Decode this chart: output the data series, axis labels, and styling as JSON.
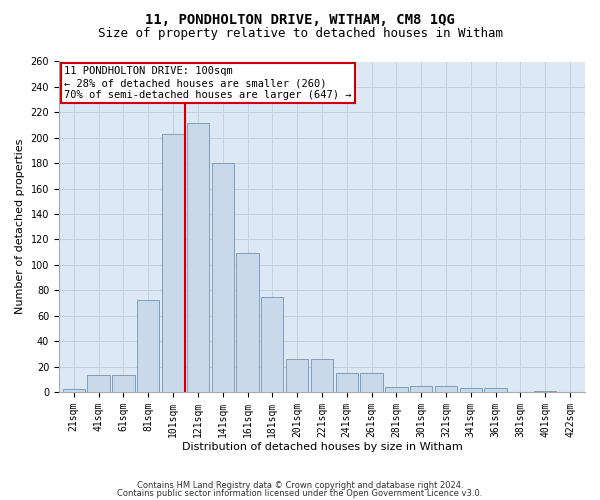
{
  "title": "11, PONDHOLTON DRIVE, WITHAM, CM8 1QG",
  "subtitle": "Size of property relative to detached houses in Witham",
  "xlabel": "Distribution of detached houses by size in Witham",
  "ylabel": "Number of detached properties",
  "footnote1": "Contains HM Land Registry data © Crown copyright and database right 2024.",
  "footnote2": "Contains public sector information licensed under the Open Government Licence v3.0.",
  "categories": [
    "21sqm",
    "41sqm",
    "61sqm",
    "81sqm",
    "101sqm",
    "121sqm",
    "141sqm",
    "161sqm",
    "181sqm",
    "201sqm",
    "221sqm",
    "241sqm",
    "261sqm",
    "281sqm",
    "301sqm",
    "321sqm",
    "341sqm",
    "361sqm",
    "381sqm",
    "401sqm",
    "422sqm"
  ],
  "values": [
    2,
    13,
    13,
    72,
    203,
    212,
    180,
    109,
    75,
    26,
    26,
    15,
    15,
    4,
    5,
    5,
    3,
    3,
    0,
    1,
    0
  ],
  "bar_color": "#c9d9ea",
  "bar_edge_color": "#7aA0c0",
  "grid_color": "#c5d0e0",
  "bg_color": "#dde8f5",
  "vline_color": "#cc0000",
  "vline_pos": 4.5,
  "annotation_text": "11 PONDHOLTON DRIVE: 100sqm\n← 28% of detached houses are smaller (260)\n70% of semi-detached houses are larger (647) →",
  "annotation_box_color": "#cc0000",
  "ylim": [
    0,
    260
  ],
  "yticks": [
    0,
    20,
    40,
    60,
    80,
    100,
    120,
    140,
    160,
    180,
    200,
    220,
    240,
    260
  ],
  "title_fontsize": 10,
  "subtitle_fontsize": 9,
  "ylabel_fontsize": 8,
  "xlabel_fontsize": 8,
  "tick_fontsize": 7,
  "ann_fontsize": 7.5
}
